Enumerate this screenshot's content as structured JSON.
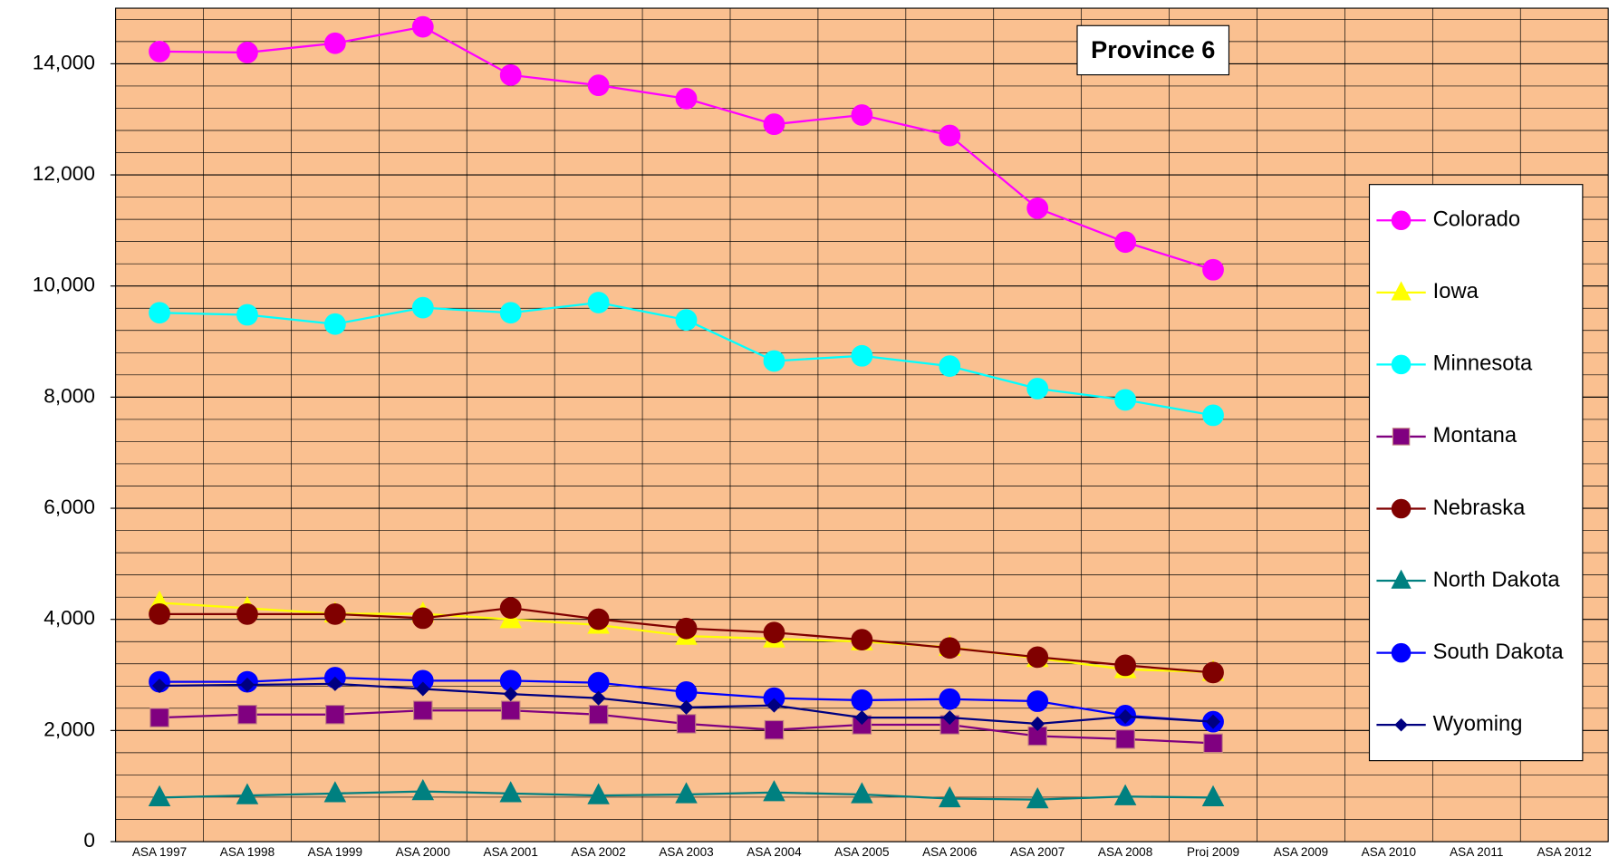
{
  "chart_data": {
    "type": "line",
    "title": "Province 6",
    "categories": [
      "ASA 1997",
      "ASA 1998",
      "ASA 1999",
      "ASA 2000",
      "ASA 2001",
      "ASA 2002",
      "ASA 2003",
      "ASA 2004",
      "ASA 2005",
      "ASA 2006",
      "ASA 2007",
      "ASA 2008",
      "Proj 2009",
      "ASA 2009",
      "ASA 2010",
      "ASA 2011",
      "ASA 2012"
    ],
    "ylim": [
      0,
      15000
    ],
    "yticks": [
      0,
      {
        "value": 2000,
        "label": "2,000"
      },
      {
        "value": 4000,
        "label": "4,000"
      },
      {
        "value": 6000,
        "label": "6,000"
      },
      {
        "value": 8000,
        "label": "8,000"
      },
      {
        "value": 10000,
        "label": "10,000"
      },
      {
        "value": 12000,
        "label": "12,000"
      },
      {
        "value": 14000,
        "label": "14,000"
      }
    ],
    "minor_yticks": [
      400,
      800,
      1200,
      1600,
      2400,
      2800,
      3200,
      3600,
      4400,
      4800,
      5200,
      5600,
      6400,
      6800,
      7200,
      7600,
      8400,
      8800,
      9200,
      9600,
      10400,
      10800,
      11200,
      11600,
      12400,
      12800,
      13200,
      13600,
      14400,
      14800
    ],
    "grid": true,
    "legend": "right",
    "background": "#fac090",
    "series": [
      {
        "name": "Colorado",
        "color": "#ff00ff",
        "marker": "circle",
        "values": [
          14221,
          14203,
          14369,
          14664,
          13797,
          13612,
          13372,
          12911,
          13077,
          12709,
          11399,
          10790,
          10292,
          null,
          null,
          null,
          null
        ]
      },
      {
        "name": "Iowa",
        "color": "#ffff00",
        "marker": "triangle",
        "values": [
          4298,
          4200,
          4100,
          4100,
          4000,
          3900,
          3700,
          3650,
          3600,
          3500,
          3300,
          3100,
          3050,
          null,
          null,
          null,
          null
        ]
      },
      {
        "name": "Minnesota",
        "color": "#00ffff",
        "marker": "circle",
        "values": [
          9518,
          9481,
          9315,
          9610,
          9518,
          9702,
          9389,
          8651,
          8743,
          8558,
          8153,
          7950,
          7673,
          null,
          null,
          null,
          null
        ]
      },
      {
        "name": "Montana",
        "color": "#800080",
        "marker": "square",
        "values": [
          2232,
          2287,
          2287,
          2361,
          2361,
          2287,
          2121,
          2011,
          2103,
          2103,
          1900,
          1845,
          1771,
          null,
          null,
          null,
          null
        ]
      },
      {
        "name": "Nebraska",
        "color": "#800000",
        "marker": "circle",
        "values": [
          4095,
          4095,
          4095,
          4021,
          4205,
          4003,
          3837,
          3763,
          3634,
          3486,
          3320,
          3173,
          3043,
          null,
          null,
          null,
          null
        ]
      },
      {
        "name": "North Dakota",
        "color": "#008080",
        "marker": "triangle",
        "values": [
          793,
          830,
          867,
          904,
          867,
          830,
          848,
          885,
          848,
          775,
          756,
          812,
          793,
          null,
          null,
          null,
          null
        ]
      },
      {
        "name": "South Dakota",
        "color": "#0000ff",
        "marker": "circle",
        "values": [
          2877,
          2877,
          2951,
          2896,
          2896,
          2859,
          2693,
          2582,
          2545,
          2564,
          2527,
          2269,
          2158,
          null,
          null,
          null,
          null
        ]
      },
      {
        "name": "Wyoming",
        "color": "#000080",
        "marker": "diamond",
        "values": [
          2804,
          2822,
          2840,
          2748,
          2656,
          2582,
          2416,
          2453,
          2232,
          2232,
          2121,
          2250,
          2158,
          null,
          null,
          null,
          null
        ]
      }
    ]
  }
}
